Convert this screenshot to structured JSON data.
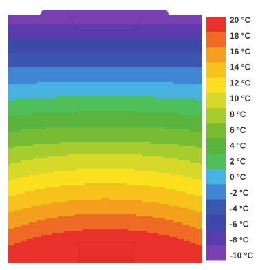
{
  "chart_data": {
    "type": "heatmap",
    "title": "",
    "xlabel": "",
    "ylabel": "",
    "unit": "°C",
    "colorbar": {
      "range": [
        -10,
        20
      ],
      "position": "right",
      "orientation": "vertical",
      "tick_values": [
        20,
        18,
        16,
        14,
        12,
        10,
        8,
        6,
        4,
        2,
        0,
        -2,
        -4,
        -6,
        -8,
        -10
      ],
      "tick_labels": [
        "20 °C",
        "18 °C",
        "16 °C",
        "14 °C",
        "12 °C",
        "10 °C",
        "8 °C",
        "6 °C",
        "4 °C",
        "2 °C",
        "0 °C",
        "-2 °C",
        "-4 °C",
        "-6 °C",
        "-8 °C",
        "-10 °C"
      ],
      "band_colors": [
        "#7a3fb0",
        "#5a3cae",
        "#3d49a8",
        "#3a56ae",
        "#3f86d4",
        "#48b2e3",
        "#4fbf5a",
        "#5ab43d",
        "#78bc34",
        "#a6cc2e",
        "#d6d92a",
        "#fbe020",
        "#f6c21b",
        "#f59f1e",
        "#ee6a25",
        "#e8322b"
      ]
    },
    "gradient_direction": "top cold (-10 °C) to bottom warm (20 °C)",
    "grid": false,
    "legend": "colorbar right"
  }
}
